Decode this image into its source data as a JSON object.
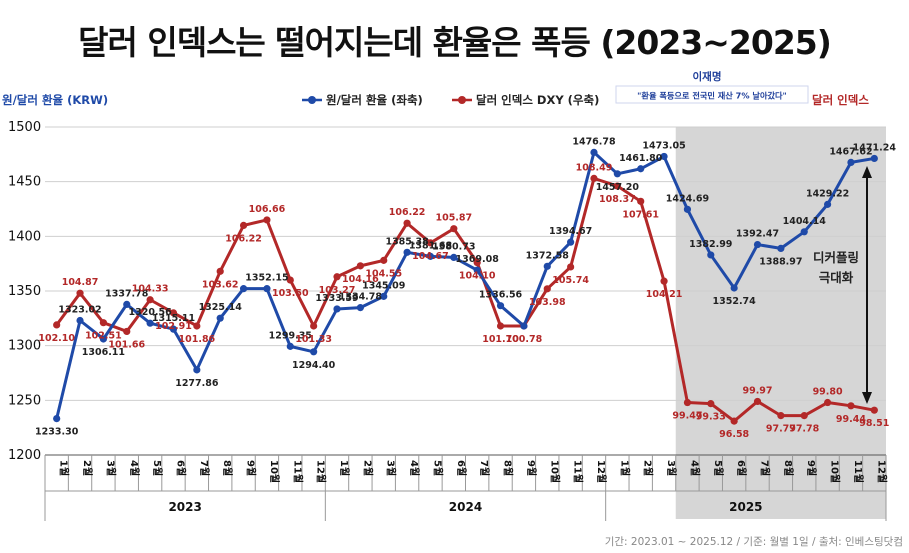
{
  "title": "달러 인덱스는 떨어지는데 환율은 폭등 (2023~2025)",
  "footer": "기간: 2023.01 ~ 2025.12 / 기준: 월별 1일 / 출처: 인베스팅닷컴",
  "colors": {
    "krw": "#1f4aa8",
    "dxy": "#b32828",
    "shade": "#d6d6d6",
    "grid": "#cfcfcf",
    "annotation_box": "#1f3f9a"
  },
  "annotation": {
    "name": "이재명",
    "text": "\"환율 폭등으로 전국민 재산 7% 날아갔다\""
  },
  "side_label": [
    "디커플링",
    "극대화"
  ],
  "chart_data": {
    "type": "line",
    "ylabel_left": "원/달러 환율 (KRW)",
    "ylabel_right": "달러 인덱스",
    "ylim": [
      1200,
      1500
    ],
    "yticks": [
      1200,
      1250,
      1300,
      1350,
      1400,
      1450,
      1500
    ],
    "legend": [
      "원/달러 환율 (좌축)",
      "달러 인덱스 DXY (우축)"
    ],
    "legend_position": "top-right",
    "grid": true,
    "years": [
      "2023",
      "2024",
      "2025"
    ],
    "months": [
      "1월",
      "2월",
      "3월",
      "4월",
      "5월",
      "6월",
      "7월",
      "8월",
      "9월",
      "10월",
      "11월",
      "12월"
    ],
    "shaded_range": [
      "2025-04",
      "2025-12"
    ],
    "series": [
      {
        "name": "원/달러 환율 (좌축)",
        "values": [
          1233.3,
          1323.02,
          1306.11,
          1337.78,
          1320.56,
          1315.11,
          1277.86,
          1325.14,
          1352.15,
          1352.15,
          1299.35,
          1294.4,
          1333.59,
          1334.78,
          1345.09,
          1385.38,
          1381.68,
          1380.73,
          1369.08,
          1336.56,
          1318.0,
          1372.58,
          1394.67,
          1476.78,
          1457.2,
          1461.8,
          1473.05,
          1424.69,
          1382.99,
          1352.74,
          1392.47,
          1388.97,
          1404.14,
          1429.22,
          1467.62,
          1471.24
        ],
        "labels": [
          "1233.30",
          "1323.02",
          "1306.11",
          "1337.78",
          "1320.56",
          "1315.11",
          "1277.86",
          "1325.14",
          "",
          "1352.15",
          "1299.35",
          "1294.40",
          "1333.59",
          "1334.78",
          "1345.09",
          "1385.38",
          "1381.68",
          "1380.73",
          "1369.08",
          "1336.56",
          "",
          "1372.58",
          "1394.67",
          "1476.78",
          "1457.20",
          "1461.80",
          "1473.05",
          "1424.69",
          "1382.99",
          "1352.74",
          "1392.47",
          "1388.97",
          "1404.14",
          "1429.22",
          "1467.62",
          "1471.24"
        ]
      },
      {
        "name": "달러 인덱스 DXY (우축)",
        "values": [
          102.1,
          104.87,
          102.51,
          101.66,
          104.33,
          102.91,
          101.86,
          103.62,
          106.22,
          106.66,
          103.5,
          101.33,
          103.27,
          104.16,
          104.55,
          106.22,
          104.67,
          105.87,
          104.1,
          101.7,
          100.78,
          103.98,
          105.74,
          108.49,
          108.37,
          107.61,
          104.21,
          99.47,
          99.33,
          96.58,
          99.97,
          97.77,
          97.78,
          99.8,
          99.44,
          98.51
        ],
        "plot_krw_equivalent": [
          1319,
          1348,
          1321,
          1313,
          1342,
          1330,
          1318,
          1368,
          1410,
          1415,
          1360,
          1318,
          1363,
          1373,
          1378,
          1412,
          1394,
          1407,
          1376,
          1318,
          1318,
          1352,
          1372,
          1453,
          1446,
          1432,
          1359,
          1248,
          1247,
          1231,
          1249,
          1236,
          1236,
          1248,
          1245,
          1241
        ]
      }
    ]
  }
}
